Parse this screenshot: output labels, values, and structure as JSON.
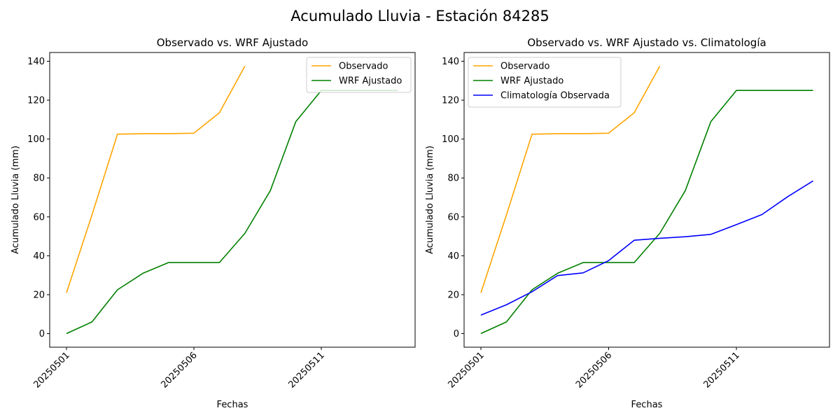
{
  "figure_title": "Acumulado Lluvia - Estación 84285",
  "chart_data": [
    {
      "type": "line",
      "title": "Observado vs. WRF Ajustado",
      "xlabel": "Fechas",
      "ylabel": "Acumulado Lluvia (mm)",
      "x_ticks": [
        "20250501",
        "20250506",
        "20250511"
      ],
      "y_ticks": [
        0,
        20,
        40,
        60,
        80,
        100,
        120,
        140
      ],
      "ylim": [
        -7,
        144.5
      ],
      "x": [
        "20250501",
        "20250502",
        "20250503",
        "20250504",
        "20250505",
        "20250506",
        "20250507",
        "20250508",
        "20250509",
        "20250510",
        "20250511",
        "20250512",
        "20250513",
        "20250514"
      ],
      "legend_position": "upper right",
      "series": [
        {
          "name": "Observado",
          "color": "#FFA500",
          "values": [
            21,
            61,
            102.5,
            102.8,
            102.8,
            103,
            113.5,
            137.5,
            null,
            null,
            null,
            null,
            null,
            null
          ]
        },
        {
          "name": "WRF Ajustado",
          "color": "#008000",
          "values": [
            0,
            6,
            22.5,
            31,
            36.5,
            36.5,
            36.5,
            51.5,
            73.5,
            109,
            125,
            125,
            125,
            125
          ]
        }
      ]
    },
    {
      "type": "line",
      "title": "Observado vs. WRF Ajustado vs. Climatología",
      "xlabel": "Fechas",
      "ylabel": "Acumulado Lluvia (mm)",
      "x_ticks": [
        "20250501",
        "20250506",
        "20250511"
      ],
      "y_ticks": [
        0,
        20,
        40,
        60,
        80,
        100,
        120,
        140
      ],
      "ylim": [
        -7,
        144.5
      ],
      "x": [
        "20250501",
        "20250502",
        "20250503",
        "20250504",
        "20250505",
        "20250506",
        "20250507",
        "20250508",
        "20250509",
        "20250510",
        "20250511",
        "20250512",
        "20250513",
        "20250514"
      ],
      "legend_position": "upper left",
      "series": [
        {
          "name": "Observado",
          "color": "#FFA500",
          "values": [
            21,
            61,
            102.5,
            102.8,
            102.8,
            103,
            113.5,
            137.5,
            null,
            null,
            null,
            null,
            null,
            null
          ]
        },
        {
          "name": "WRF Ajustado",
          "color": "#008000",
          "values": [
            0,
            6,
            22.5,
            31,
            36.5,
            36.5,
            36.5,
            51.5,
            73.5,
            109,
            125,
            125,
            125,
            125
          ]
        },
        {
          "name": "Climatología Observada",
          "color": "#0000FF",
          "values": [
            9.5,
            14.8,
            21.5,
            29.8,
            31.2,
            37.5,
            48,
            49,
            49.8,
            51,
            56,
            61.2,
            70.3,
            78.5
          ]
        }
      ]
    }
  ]
}
